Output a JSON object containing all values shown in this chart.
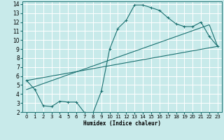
{
  "title": "",
  "xlabel": "Humidex (Indice chaleur)",
  "ylabel": "",
  "background_color": "#c8eaea",
  "grid_color": "#ffffff",
  "line_color": "#1a7070",
  "xlim": [
    -0.5,
    23.5
  ],
  "ylim": [
    2,
    14.3
  ],
  "xticks": [
    0,
    1,
    2,
    3,
    4,
    5,
    6,
    7,
    8,
    9,
    10,
    11,
    12,
    13,
    14,
    15,
    16,
    17,
    18,
    19,
    20,
    21,
    22,
    23
  ],
  "yticks": [
    2,
    3,
    4,
    5,
    6,
    7,
    8,
    9,
    10,
    11,
    12,
    13,
    14
  ],
  "line1_x": [
    0,
    1,
    2,
    3,
    4,
    5,
    6,
    7,
    8,
    9,
    10,
    11,
    12,
    13,
    14,
    15,
    16,
    17,
    18,
    19,
    20,
    21,
    22,
    23
  ],
  "line1_y": [
    5.5,
    4.5,
    2.7,
    2.6,
    3.2,
    3.1,
    3.1,
    1.9,
    1.9,
    4.3,
    9.0,
    11.3,
    12.2,
    13.9,
    13.9,
    13.6,
    13.3,
    12.5,
    11.8,
    11.5,
    11.5,
    12.0,
    10.4,
    9.3
  ],
  "line2_x": [
    0,
    23
  ],
  "line2_y": [
    5.5,
    9.3
  ],
  "line3_x": [
    0,
    22,
    23
  ],
  "line3_y": [
    4.5,
    11.7,
    9.3
  ]
}
